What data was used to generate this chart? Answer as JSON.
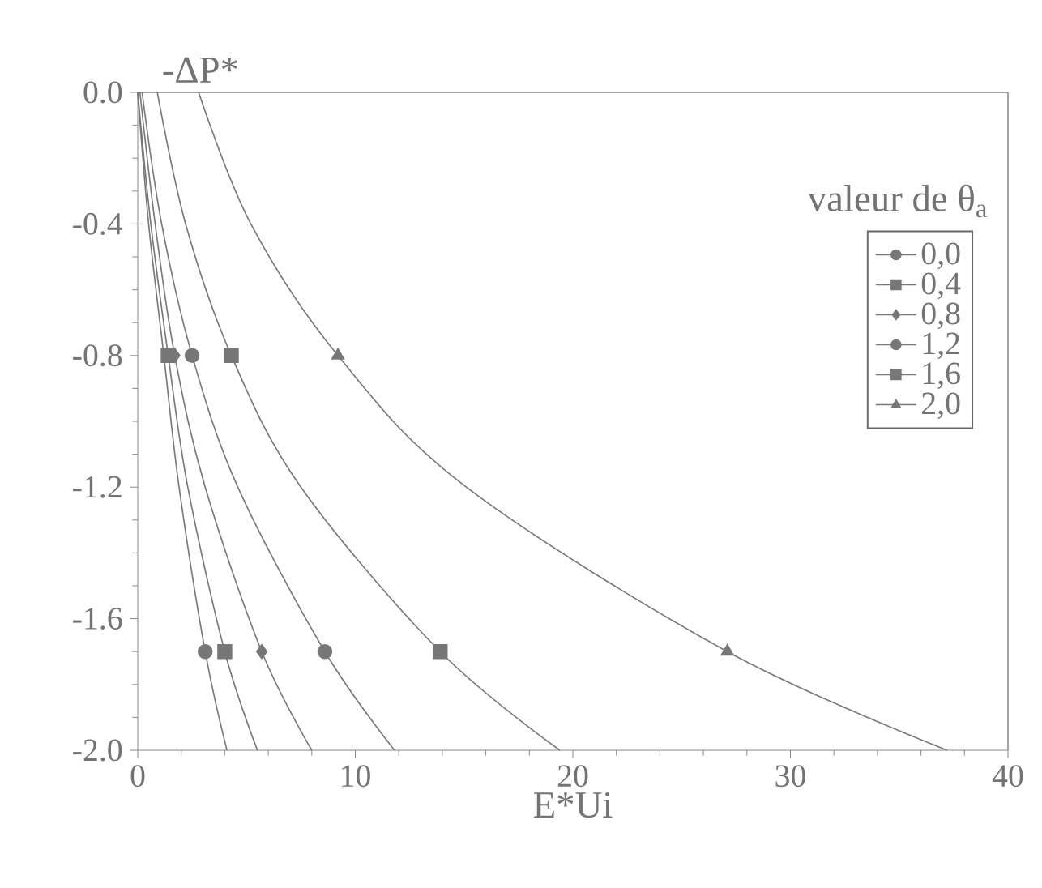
{
  "chart_data": {
    "type": "line",
    "xlabel": "E*Ui",
    "ylabel": "-ΔP*",
    "legend_title": "valeur de θ$_{a}$",
    "xlim": [
      0,
      40
    ],
    "ylim": [
      -2.0,
      0.0
    ],
    "xticks": [
      0,
      10,
      20,
      30,
      40
    ],
    "yticks": [
      {
        "value": 0.0,
        "label": "0.0"
      },
      -0.4,
      -0.8,
      -1.2,
      -1.6,
      {
        "value": -2.0,
        "label": "-2.0"
      }
    ],
    "legend": "top right",
    "series": [
      {
        "color": "#777777",
        "x": [
          0.0,
          0.5,
          1.2,
          1.9,
          3.1,
          4.1
        ],
        "values": [
          0.0,
          -0.4,
          -0.8,
          -1.2,
          -1.7,
          -2.0
        ]
      },
      {
        "color": "#777777",
        "x": [
          0.0,
          0.6,
          1.4,
          2.3,
          4.0,
          5.5
        ],
        "values": [
          0.0,
          -0.4,
          -0.8,
          -1.2,
          -1.7,
          -2.0
        ]
      },
      {
        "color": "#777777",
        "x": [
          0.1,
          0.8,
          1.7,
          3.1,
          5.7,
          8.0
        ],
        "values": [
          0.0,
          -0.4,
          -0.8,
          -1.2,
          -1.7,
          -2.0
        ]
      },
      {
        "color": "#777777",
        "x": [
          0.2,
          1.1,
          2.5,
          4.6,
          8.6,
          11.8
        ],
        "values": [
          0.0,
          -0.4,
          -0.8,
          -1.2,
          -1.7,
          -2.0
        ]
      },
      {
        "color": "#777777",
        "x": [
          0.9,
          2.2,
          4.3,
          7.5,
          13.9,
          19.4
        ],
        "values": [
          0.0,
          -0.4,
          -0.8,
          -1.2,
          -1.7,
          -2.0
        ]
      },
      {
        "color": "#777777",
        "x": [
          2.8,
          5.2,
          9.2,
          15.1,
          27.1,
          37.2
        ],
        "values": [
          0.0,
          -0.4,
          -0.8,
          -1.2,
          -1.7,
          -2.0
        ]
      },
      {
        "type": "scatter",
        "name": "0,0",
        "color": "#777777",
        "marker": "circle",
        "x": [
          3.1
        ],
        "values": [
          -1.7
        ]
      },
      {
        "type": "scatter",
        "name": "0,4",
        "color": "#777777",
        "marker": "square",
        "x": [
          1.4,
          4.0
        ],
        "values": [
          -0.8,
          -1.7
        ]
      },
      {
        "type": "scatter",
        "name": "0,8",
        "color": "#777777",
        "marker": "diamond",
        "x": [
          1.7,
          5.7
        ],
        "values": [
          -0.8,
          -1.7
        ]
      },
      {
        "type": "scatter",
        "name": "1,2",
        "color": "#777777",
        "marker": "circle",
        "x": [
          2.5,
          8.6
        ],
        "values": [
          -0.8,
          -1.7
        ]
      },
      {
        "type": "scatter",
        "name": "1,6",
        "color": "#777777",
        "marker": "square",
        "x": [
          4.3,
          13.9
        ],
        "values": [
          -0.8,
          -1.7
        ]
      },
      {
        "type": "scatter",
        "name": "2,0",
        "color": "#777777",
        "marker": "triangle",
        "x": [
          9.2,
          27.1
        ],
        "values": [
          -0.8,
          -1.7
        ]
      }
    ]
  }
}
